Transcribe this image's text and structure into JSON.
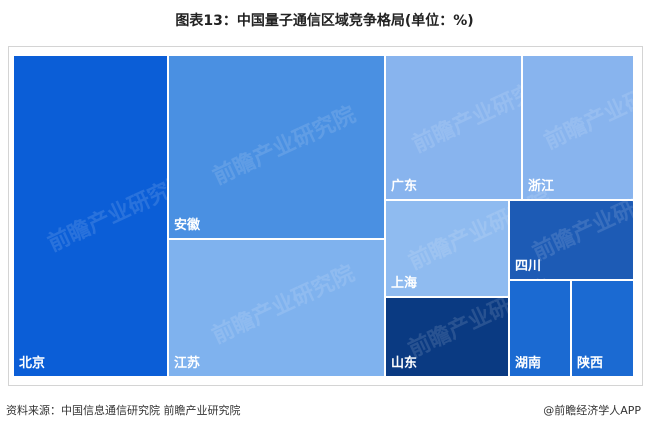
{
  "title": "图表13：中国量子通信区域竞争格局(单位：%)",
  "footer": {
    "source": "资料来源：中国信息通信研究院 前瞻产业研究院",
    "brand": "@前瞻经济学人APP"
  },
  "watermark": "前瞻产业研究院",
  "chart_data": {
    "type": "treemap",
    "title": "图表13：中国量子通信区域竞争格局(单位：%)",
    "unit": "%",
    "items": [
      {
        "name": "北京",
        "value": 25.0,
        "color": "#0b5ed7"
      },
      {
        "name": "安徽",
        "value": 21.0,
        "color": "#4a90e2"
      },
      {
        "name": "江苏",
        "value": 14.0,
        "color": "#7fb2ee"
      },
      {
        "name": "广东",
        "value": 8.5,
        "color": "#88b4ee"
      },
      {
        "name": "浙江",
        "value": 7.0,
        "color": "#88b4ee"
      },
      {
        "name": "上海",
        "value": 6.0,
        "color": "#8fbbf0"
      },
      {
        "name": "四川",
        "value": 5.0,
        "color": "#1d5bb5"
      },
      {
        "name": "山东",
        "value": 5.5,
        "color": "#0a3a82"
      },
      {
        "name": "湖南",
        "value": 4.0,
        "color": "#1b6ad2"
      },
      {
        "name": "陕西",
        "value": 4.0,
        "color": "#1b6ad2"
      }
    ]
  }
}
